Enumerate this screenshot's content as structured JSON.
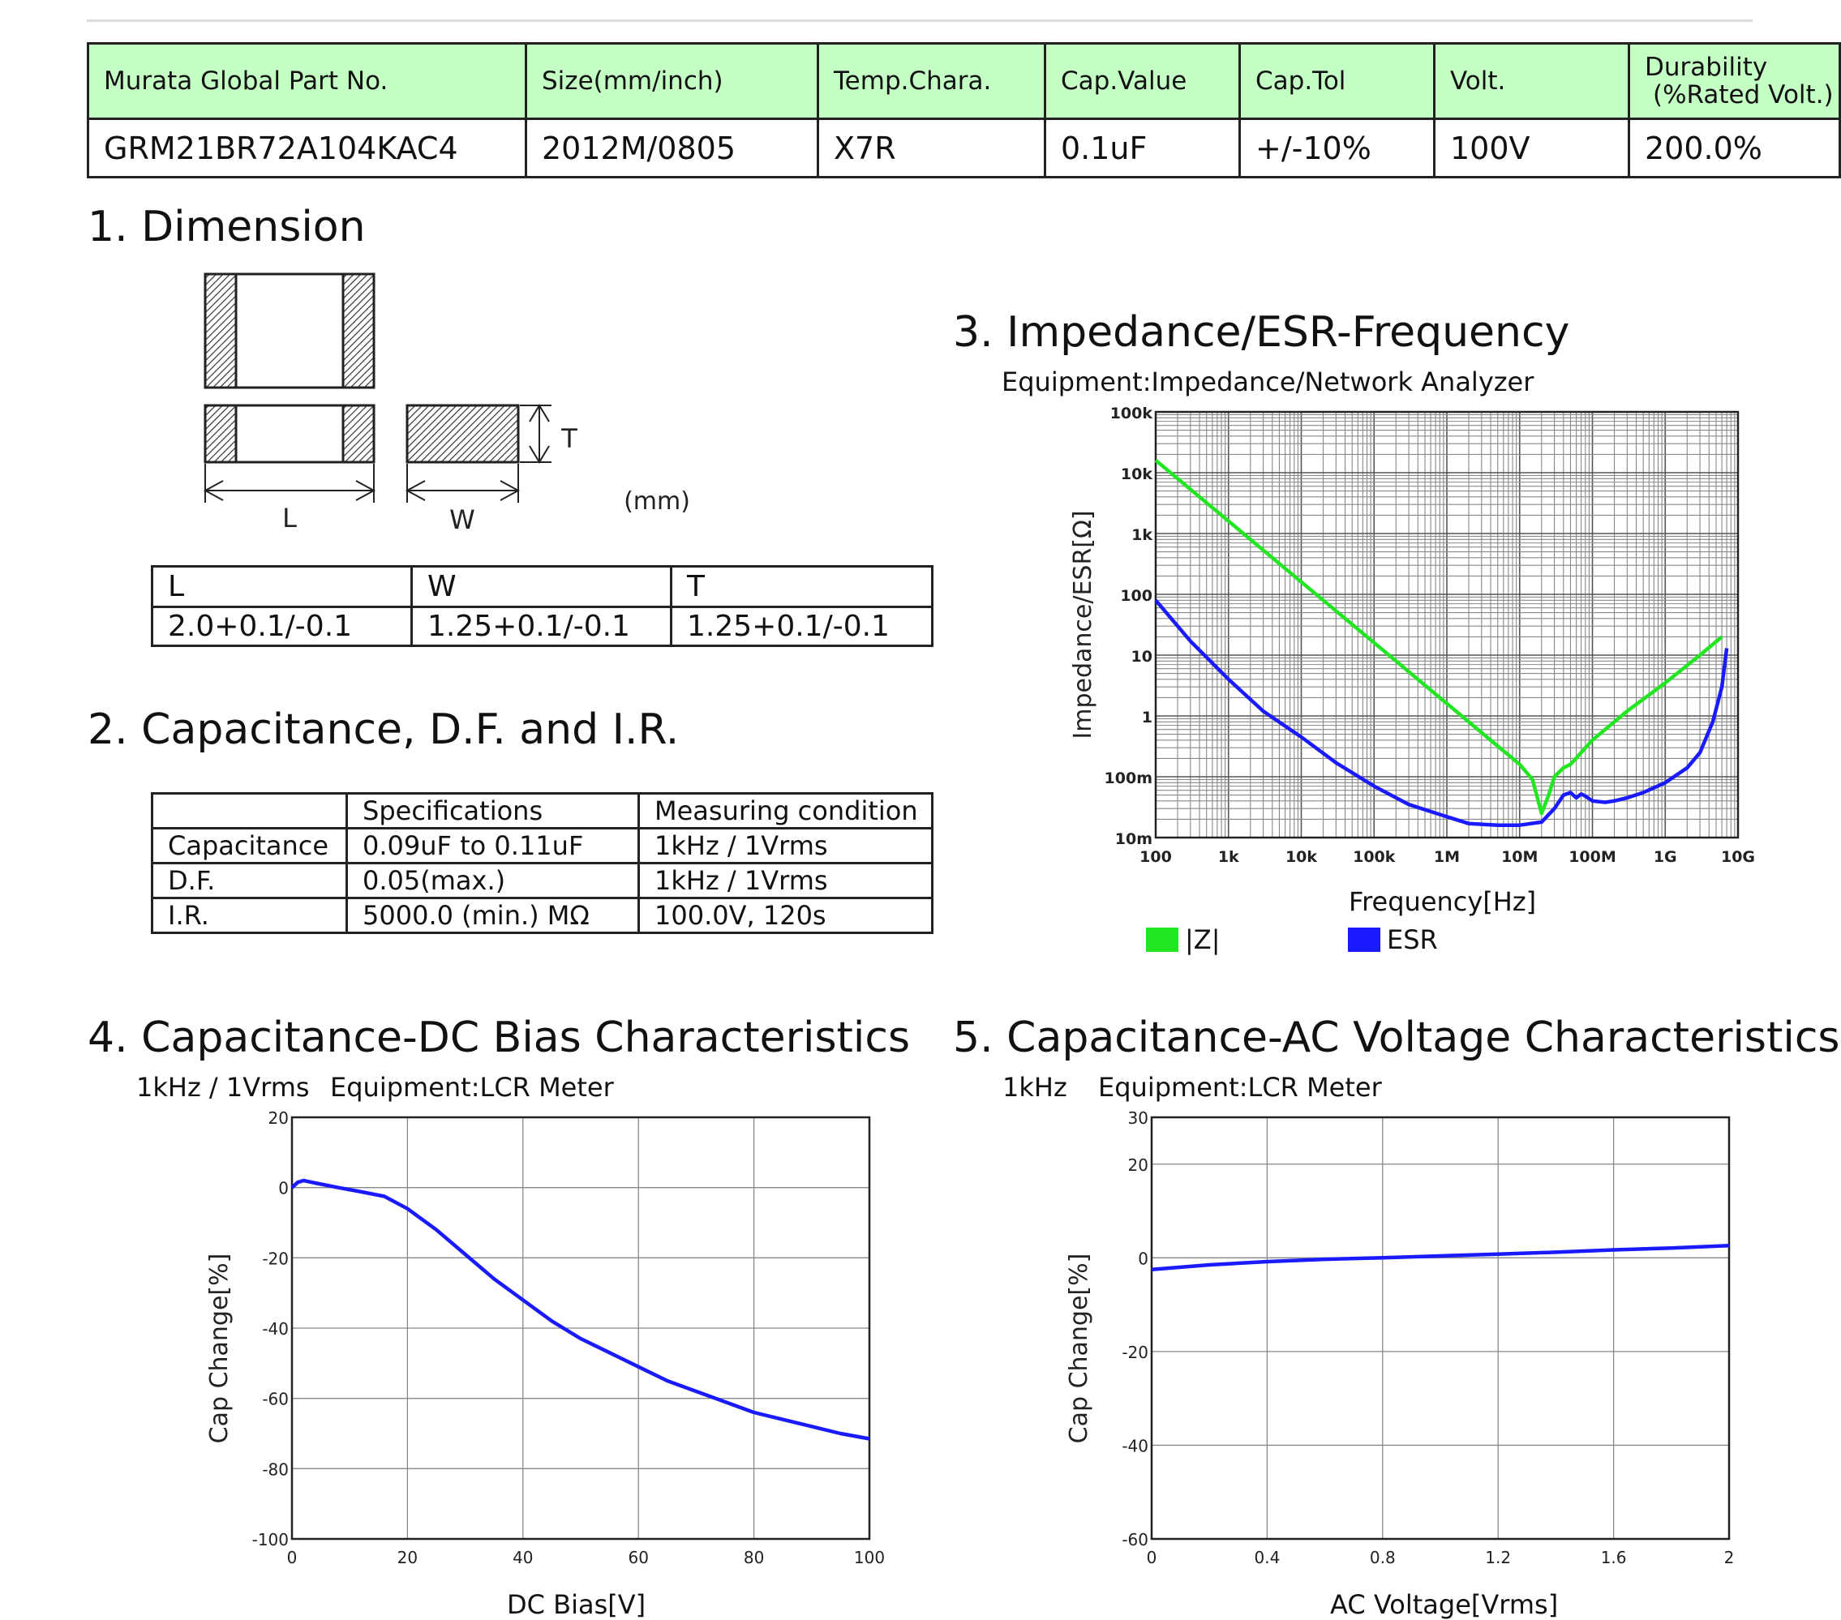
{
  "spec_table": {
    "headers": [
      "Murata Global Part No.",
      "Size(mm/inch)",
      "Temp.Chara.",
      "Cap.Value",
      "Cap.Tol",
      "Volt.",
      "Durability",
      "(%Rated Volt.)"
    ],
    "values": [
      "GRM21BR72A104KAC4",
      "2012M/0805",
      "X7R",
      "0.1uF",
      "+/-10%",
      "100V",
      "200.0%"
    ]
  },
  "dimension": {
    "title": "1. Dimension",
    "labels": {
      "l": "L",
      "w": "W",
      "t": "T",
      "unit": "(mm)"
    },
    "table": {
      "headers": [
        "L",
        "W",
        "T"
      ],
      "values": [
        "2.0+0.1/-0.1",
        "1.25+0.1/-0.1",
        "1.25+0.1/-0.1"
      ]
    }
  },
  "capacitance": {
    "title": "2. Capacitance, D.F. and I.R.",
    "headers": [
      "",
      "Specifications",
      "Measuring condition"
    ],
    "rows": [
      [
        "Capacitance",
        "0.09uF to 0.11uF",
        "1kHz / 1Vrms"
      ],
      [
        "D.F.",
        "0.05(max.)",
        "1kHz / 1Vrms"
      ],
      [
        "I.R.",
        "5000.0 (min.) MΩ",
        "100.0V, 120s"
      ]
    ]
  },
  "impedance": {
    "title": "3. Impedance/ESR-Frequency",
    "equipment": "Equipment:Impedance/Network Analyzer",
    "xlabel": "Frequency[Hz]",
    "ylabel": "Impedance/ESR[Ω]"
  },
  "dcbias": {
    "title": "4. Capacitance-DC Bias Characteristics",
    "condition": "1kHz / 1Vrms",
    "equipment": "Equipment:LCR Meter",
    "xlabel": "DC Bias[V]",
    "ylabel": "Cap Change[%]"
  },
  "acvolt": {
    "title": "5. Capacitance-AC Voltage Characteristics",
    "condition": "1kHz",
    "equipment": "Equipment:LCR Meter",
    "xlabel": "AC Voltage[Vrms]",
    "ylabel": "Cap Change[%]"
  },
  "chart_data": [
    {
      "type": "line",
      "x_scale": "log",
      "y_scale": "log",
      "xlim": [
        100,
        10000000000
      ],
      "ylim": [
        0.01,
        100000
      ],
      "x_ticks": [
        100,
        1000,
        10000,
        100000,
        1000000,
        10000000,
        100000000,
        1000000000,
        10000000000
      ],
      "x_tick_labels": [
        "100",
        "1k",
        "10k",
        "100k",
        "1M",
        "10M",
        "100M",
        "1G",
        "10G"
      ],
      "y_ticks": [
        0.01,
        0.1,
        1,
        10,
        100,
        1000,
        10000,
        100000
      ],
      "y_tick_labels": [
        "10m",
        "100m",
        "1",
        "10",
        "100",
        "1k",
        "10k",
        "100k"
      ],
      "grid": true,
      "legend": "bottom",
      "series": [
        {
          "name": "|Z|",
          "color": "#22e622",
          "points": [
            [
              100,
              16000
            ],
            [
              1000,
              1600
            ],
            [
              10000,
              160
            ],
            [
              100000,
              16
            ],
            [
              1000000,
              1.6
            ],
            [
              5000000,
              0.32
            ],
            [
              10000000,
              0.16
            ],
            [
              15000000,
              0.09
            ],
            [
              20000000,
              0.025
            ],
            [
              25000000,
              0.05
            ],
            [
              30000000,
              0.1
            ],
            [
              40000000,
              0.14
            ],
            [
              50000000,
              0.16
            ],
            [
              100000000,
              0.4
            ],
            [
              300000000,
              1.2
            ],
            [
              1000000000,
              3.5
            ],
            [
              3000000000,
              10
            ],
            [
              6000000000,
              20
            ]
          ]
        },
        {
          "name": "ESR",
          "color": "#1a1aff",
          "points": [
            [
              100,
              80
            ],
            [
              300,
              17
            ],
            [
              1000,
              4
            ],
            [
              3000,
              1.2
            ],
            [
              10000,
              0.45
            ],
            [
              30000,
              0.17
            ],
            [
              100000,
              0.07
            ],
            [
              300000,
              0.035
            ],
            [
              1000000,
              0.022
            ],
            [
              2000000,
              0.017
            ],
            [
              5000000,
              0.016
            ],
            [
              10000000,
              0.016
            ],
            [
              20000000,
              0.018
            ],
            [
              30000000,
              0.03
            ],
            [
              40000000,
              0.05
            ],
            [
              50000000,
              0.055
            ],
            [
              60000000,
              0.045
            ],
            [
              70000000,
              0.052
            ],
            [
              80000000,
              0.048
            ],
            [
              100000000,
              0.04
            ],
            [
              150000000,
              0.038
            ],
            [
              200000000,
              0.04
            ],
            [
              300000000,
              0.045
            ],
            [
              500000000,
              0.055
            ],
            [
              1000000000,
              0.08
            ],
            [
              2000000000,
              0.14
            ],
            [
              3000000000,
              0.25
            ],
            [
              4500000000,
              0.8
            ],
            [
              6000000000,
              3
            ],
            [
              7000000000,
              13
            ]
          ]
        }
      ]
    },
    {
      "type": "line",
      "xlim": [
        0,
        100
      ],
      "ylim": [
        -100,
        20
      ],
      "x_ticks": [
        0,
        20,
        40,
        60,
        80,
        100
      ],
      "y_ticks": [
        -100,
        -80,
        -60,
        -40,
        -20,
        0,
        20
      ],
      "grid": true,
      "series": [
        {
          "color": "#1a1aff",
          "points": [
            [
              0,
              0
            ],
            [
              1,
              1.5
            ],
            [
              2,
              2
            ],
            [
              4,
              1.3
            ],
            [
              8,
              0
            ],
            [
              12,
              -1.2
            ],
            [
              16,
              -2.5
            ],
            [
              20,
              -6
            ],
            [
              25,
              -12
            ],
            [
              30,
              -19
            ],
            [
              35,
              -26
            ],
            [
              40,
              -32
            ],
            [
              45,
              -38
            ],
            [
              50,
              -43
            ],
            [
              55,
              -47
            ],
            [
              60,
              -51
            ],
            [
              65,
              -55
            ],
            [
              70,
              -58
            ],
            [
              75,
              -61
            ],
            [
              80,
              -64
            ],
            [
              85,
              -66
            ],
            [
              90,
              -68
            ],
            [
              95,
              -70
            ],
            [
              100,
              -71.5
            ]
          ]
        }
      ]
    },
    {
      "type": "line",
      "xlim": [
        0,
        2
      ],
      "ylim": [
        -60,
        30
      ],
      "x_ticks": [
        0,
        0.4,
        0.8,
        1.2,
        1.6,
        2
      ],
      "x_tick_labels": [
        "0",
        "0.4",
        "0.8",
        "1.2",
        "1.6",
        "2"
      ],
      "y_ticks": [
        -60,
        -40,
        -20,
        0,
        20,
        30
      ],
      "grid": true,
      "series": [
        {
          "color": "#1a1aff",
          "points": [
            [
              0,
              -2.5
            ],
            [
              0.1,
              -2
            ],
            [
              0.2,
              -1.5
            ],
            [
              0.4,
              -0.8
            ],
            [
              0.6,
              -0.3
            ],
            [
              0.8,
              0
            ],
            [
              1.0,
              0.4
            ],
            [
              1.2,
              0.8
            ],
            [
              1.4,
              1.2
            ],
            [
              1.6,
              1.7
            ],
            [
              1.8,
              2.1
            ],
            [
              2.0,
              2.6
            ]
          ]
        }
      ]
    }
  ]
}
